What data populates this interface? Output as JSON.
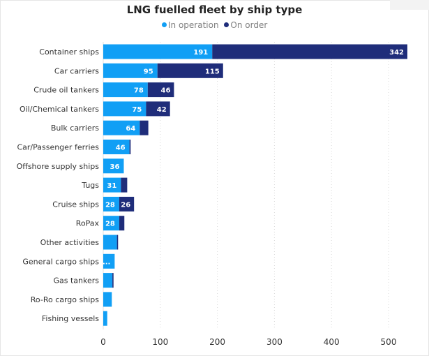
{
  "chart_data": {
    "type": "bar",
    "orientation": "horizontal",
    "stacked": true,
    "title": "LNG fuelled fleet by ship type",
    "xlabel": "",
    "ylabel": "",
    "xlim": [
      0,
      540
    ],
    "x_ticks": [
      0,
      100,
      200,
      300,
      400,
      500
    ],
    "grid": "vertical dashed",
    "legend_position": "top",
    "categories": [
      "Container ships",
      "Car carriers",
      "Crude oil tankers",
      "Oil/Chemical tankers",
      "Bulk carriers",
      "Car/Passenger ferries",
      "Offshore supply ships",
      "Tugs",
      "Cruise ships",
      "RoPax",
      "Other activities",
      "General cargo ships",
      "Gas tankers",
      "Ro-Ro cargo ships",
      "Fishing vessels"
    ],
    "series": [
      {
        "name": "In operation",
        "color": "#119ff5",
        "values": [
          191,
          95,
          78,
          75,
          64,
          46,
          36,
          31,
          28,
          28,
          24,
          20,
          16,
          15,
          7
        ],
        "labels": [
          "191",
          "95",
          "78",
          "75",
          "64",
          "46",
          "36",
          "31",
          "28",
          "28",
          "",
          "...",
          "",
          "",
          ""
        ]
      },
      {
        "name": "On order",
        "color": "#1f2d7a",
        "values": [
          342,
          115,
          46,
          42,
          15,
          2,
          0,
          11,
          26,
          9,
          2,
          0,
          2,
          0,
          0
        ],
        "labels": [
          "342",
          "115",
          "46",
          "42",
          "",
          "",
          "",
          "",
          "26",
          "",
          "",
          "",
          "",
          "",
          ""
        ]
      }
    ]
  }
}
